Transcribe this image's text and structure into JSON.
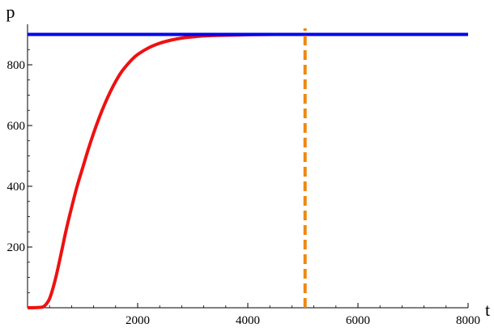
{
  "chart_data": {
    "type": "line",
    "title": "",
    "xlabel": "t",
    "ylabel": "p",
    "xlim": [
      0,
      8000
    ],
    "ylim": [
      0,
      920
    ],
    "x_ticks": [
      2000,
      4000,
      6000,
      8000
    ],
    "y_ticks": [
      200,
      400,
      600,
      800
    ],
    "x_tick_labels": [
      "2000",
      "4000",
      "6000",
      "8000"
    ],
    "y_tick_labels": [
      "200",
      "400",
      "600",
      "800"
    ],
    "grid": false,
    "colors": {
      "curve": "#ee1111",
      "horizontal": "#0000ee",
      "vertical": "#ee8811"
    },
    "series": [
      {
        "style": "solid",
        "color": "#ee1111",
        "x": [
          0,
          200,
          300,
          400,
          500,
          600,
          700,
          800,
          900,
          1000,
          1100,
          1200,
          1300,
          1400,
          1500,
          1600,
          1700,
          1800,
          1900,
          2000,
          2200,
          2400,
          2600,
          2800,
          3000,
          3200,
          3500,
          3800,
          4000,
          4500,
          5000
        ],
        "y": [
          0,
          1,
          5,
          30,
          90,
          170,
          255,
          330,
          400,
          460,
          520,
          575,
          625,
          670,
          710,
          745,
          775,
          798,
          818,
          834,
          856,
          871,
          881,
          888,
          892,
          895,
          897,
          898,
          899,
          900,
          900
        ]
      },
      {
        "style": "solid",
        "color": "#0000ee",
        "x": [
          0,
          8000
        ],
        "y": [
          900,
          900
        ]
      },
      {
        "style": "dashed",
        "color": "#ee8811",
        "x": [
          5040,
          5040
        ],
        "y": [
          0,
          920
        ]
      }
    ]
  }
}
